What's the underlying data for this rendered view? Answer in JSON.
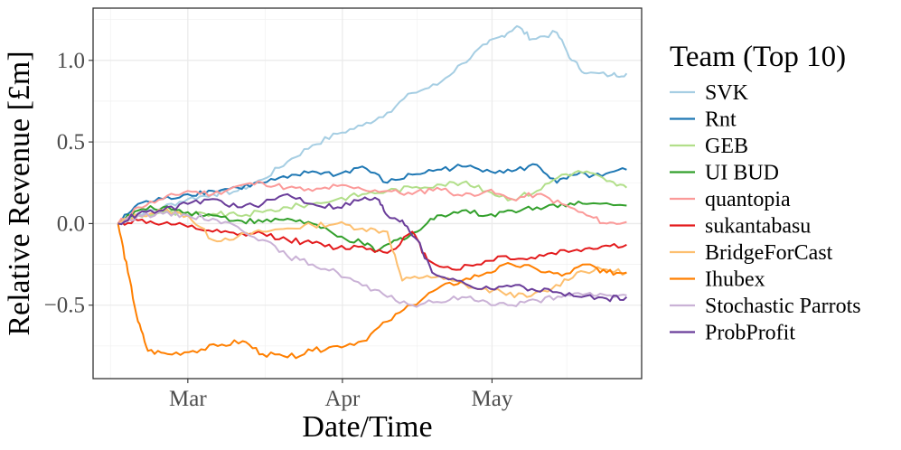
{
  "chart_data": {
    "type": "line",
    "title": "",
    "xlabel": "Date/Time",
    "ylabel": "Relative Revenue [£m]",
    "x_ticks": [
      {
        "label": "Mar",
        "date": "2024-03-01"
      },
      {
        "label": "Apr",
        "date": "2024-04-01"
      },
      {
        "label": "May",
        "date": "2024-05-01"
      }
    ],
    "y_ticks": [
      {
        "label": "1.0",
        "value": 1.0
      },
      {
        "label": "0.5",
        "value": 0.5
      },
      {
        "label": "0.0",
        "value": 0.0
      },
      {
        "label": "−0.5",
        "value": -0.5
      }
    ],
    "xlim": [
      "2024-02-11",
      "2024-05-31"
    ],
    "ylim": [
      -0.95,
      1.32
    ],
    "grid": true,
    "legend": {
      "title": "Team (Top 10)",
      "position": "right"
    },
    "series": [
      {
        "name": "SVK",
        "color": "#a6cee3",
        "points": [
          [
            "2024-02-16",
            0.0
          ],
          [
            "2024-02-20",
            0.06
          ],
          [
            "2024-02-25",
            0.1
          ],
          [
            "2024-03-01",
            0.15
          ],
          [
            "2024-03-06",
            0.18
          ],
          [
            "2024-03-11",
            0.2
          ],
          [
            "2024-03-16",
            0.27
          ],
          [
            "2024-03-21",
            0.38
          ],
          [
            "2024-03-26",
            0.48
          ],
          [
            "2024-03-31",
            0.55
          ],
          [
            "2024-04-05",
            0.6
          ],
          [
            "2024-04-10",
            0.68
          ],
          [
            "2024-04-15",
            0.8
          ],
          [
            "2024-04-20",
            0.85
          ],
          [
            "2024-04-25",
            0.98
          ],
          [
            "2024-04-30",
            1.1
          ],
          [
            "2024-05-03",
            1.15
          ],
          [
            "2024-05-06",
            1.21
          ],
          [
            "2024-05-09",
            1.13
          ],
          [
            "2024-05-14",
            1.17
          ],
          [
            "2024-05-17",
            1.0
          ],
          [
            "2024-05-20",
            0.92
          ],
          [
            "2024-05-25",
            0.91
          ],
          [
            "2024-05-28",
            0.92
          ]
        ]
      },
      {
        "name": "Rnt",
        "color": "#1f78b4",
        "points": [
          [
            "2024-02-16",
            0.0
          ],
          [
            "2024-02-20",
            0.12
          ],
          [
            "2024-02-25",
            0.15
          ],
          [
            "2024-03-01",
            0.18
          ],
          [
            "2024-03-06",
            0.2
          ],
          [
            "2024-03-11",
            0.22
          ],
          [
            "2024-03-16",
            0.25
          ],
          [
            "2024-03-21",
            0.28
          ],
          [
            "2024-03-26",
            0.32
          ],
          [
            "2024-03-31",
            0.3
          ],
          [
            "2024-04-05",
            0.35
          ],
          [
            "2024-04-10",
            0.25
          ],
          [
            "2024-04-15",
            0.3
          ],
          [
            "2024-04-20",
            0.33
          ],
          [
            "2024-04-25",
            0.35
          ],
          [
            "2024-04-30",
            0.33
          ],
          [
            "2024-05-05",
            0.32
          ],
          [
            "2024-05-10",
            0.36
          ],
          [
            "2024-05-14",
            0.25
          ],
          [
            "2024-05-18",
            0.3
          ],
          [
            "2024-05-23",
            0.29
          ],
          [
            "2024-05-28",
            0.33
          ]
        ]
      },
      {
        "name": "GEB",
        "color": "#b2df8a",
        "points": [
          [
            "2024-02-16",
            0.0
          ],
          [
            "2024-02-20",
            0.05
          ],
          [
            "2024-02-25",
            0.07
          ],
          [
            "2024-03-01",
            0.05
          ],
          [
            "2024-03-06",
            0.06
          ],
          [
            "2024-03-11",
            0.05
          ],
          [
            "2024-03-16",
            0.07
          ],
          [
            "2024-03-21",
            0.1
          ],
          [
            "2024-03-26",
            0.12
          ],
          [
            "2024-03-31",
            0.15
          ],
          [
            "2024-04-05",
            0.18
          ],
          [
            "2024-04-10",
            0.2
          ],
          [
            "2024-04-15",
            0.22
          ],
          [
            "2024-04-20",
            0.24
          ],
          [
            "2024-04-25",
            0.25
          ],
          [
            "2024-04-30",
            0.2
          ],
          [
            "2024-05-05",
            0.15
          ],
          [
            "2024-05-10",
            0.2
          ],
          [
            "2024-05-15",
            0.3
          ],
          [
            "2024-05-20",
            0.32
          ],
          [
            "2024-05-24",
            0.26
          ],
          [
            "2024-05-28",
            0.22
          ]
        ]
      },
      {
        "name": "UI BUD",
        "color": "#33a02c",
        "points": [
          [
            "2024-02-16",
            0.0
          ],
          [
            "2024-02-20",
            0.08
          ],
          [
            "2024-02-25",
            0.1
          ],
          [
            "2024-03-01",
            0.07
          ],
          [
            "2024-03-06",
            0.05
          ],
          [
            "2024-03-11",
            0.02
          ],
          [
            "2024-03-16",
            0.01
          ],
          [
            "2024-03-21",
            0.03
          ],
          [
            "2024-03-26",
            0.0
          ],
          [
            "2024-03-31",
            -0.08
          ],
          [
            "2024-04-05",
            -0.12
          ],
          [
            "2024-04-08",
            -0.17
          ],
          [
            "2024-04-12",
            -0.1
          ],
          [
            "2024-04-16",
            -0.05
          ],
          [
            "2024-04-20",
            0.05
          ],
          [
            "2024-04-25",
            0.08
          ],
          [
            "2024-04-30",
            0.05
          ],
          [
            "2024-05-05",
            0.08
          ],
          [
            "2024-05-10",
            0.1
          ],
          [
            "2024-05-15",
            0.12
          ],
          [
            "2024-05-20",
            0.12
          ],
          [
            "2024-05-28",
            0.11
          ]
        ]
      },
      {
        "name": "quantopia",
        "color": "#fb9a99",
        "points": [
          [
            "2024-02-16",
            0.0
          ],
          [
            "2024-02-20",
            0.1
          ],
          [
            "2024-02-25",
            0.15
          ],
          [
            "2024-03-01",
            0.2
          ],
          [
            "2024-03-06",
            0.18
          ],
          [
            "2024-03-11",
            0.23
          ],
          [
            "2024-03-16",
            0.25
          ],
          [
            "2024-03-21",
            0.22
          ],
          [
            "2024-03-26",
            0.2
          ],
          [
            "2024-03-31",
            0.23
          ],
          [
            "2024-04-05",
            0.21
          ],
          [
            "2024-04-10",
            0.2
          ],
          [
            "2024-04-15",
            0.18
          ],
          [
            "2024-04-20",
            0.22
          ],
          [
            "2024-04-25",
            0.17
          ],
          [
            "2024-04-30",
            0.2
          ],
          [
            "2024-05-05",
            0.15
          ],
          [
            "2024-05-10",
            0.18
          ],
          [
            "2024-05-15",
            0.12
          ],
          [
            "2024-05-20",
            0.05
          ],
          [
            "2024-05-24",
            0.0
          ],
          [
            "2024-05-28",
            0.01
          ]
        ]
      },
      {
        "name": "sukantabasu",
        "color": "#e31a1c",
        "points": [
          [
            "2024-02-16",
            0.0
          ],
          [
            "2024-02-20",
            0.02
          ],
          [
            "2024-02-25",
            0.0
          ],
          [
            "2024-03-01",
            -0.02
          ],
          [
            "2024-03-06",
            -0.05
          ],
          [
            "2024-03-11",
            -0.07
          ],
          [
            "2024-03-16",
            -0.06
          ],
          [
            "2024-03-21",
            -0.1
          ],
          [
            "2024-03-26",
            -0.12
          ],
          [
            "2024-03-31",
            -0.15
          ],
          [
            "2024-04-05",
            -0.14
          ],
          [
            "2024-04-10",
            -0.18
          ],
          [
            "2024-04-15",
            -0.05
          ],
          [
            "2024-04-18",
            -0.22
          ],
          [
            "2024-04-23",
            -0.28
          ],
          [
            "2024-04-28",
            -0.25
          ],
          [
            "2024-05-03",
            -0.2
          ],
          [
            "2024-05-08",
            -0.22
          ],
          [
            "2024-05-13",
            -0.18
          ],
          [
            "2024-05-18",
            -0.16
          ],
          [
            "2024-05-23",
            -0.14
          ],
          [
            "2024-05-28",
            -0.13
          ]
        ]
      },
      {
        "name": "BridgeForCast",
        "color": "#fdbf6f",
        "points": [
          [
            "2024-02-16",
            0.0
          ],
          [
            "2024-02-20",
            0.05
          ],
          [
            "2024-02-25",
            0.08
          ],
          [
            "2024-03-01",
            0.05
          ],
          [
            "2024-03-06",
            -0.1
          ],
          [
            "2024-03-11",
            -0.08
          ],
          [
            "2024-03-16",
            -0.05
          ],
          [
            "2024-03-21",
            -0.03
          ],
          [
            "2024-03-26",
            -0.01
          ],
          [
            "2024-03-31",
            0.0
          ],
          [
            "2024-04-05",
            -0.03
          ],
          [
            "2024-04-10",
            -0.05
          ],
          [
            "2024-04-13",
            -0.35
          ],
          [
            "2024-04-18",
            -0.32
          ],
          [
            "2024-04-23",
            -0.35
          ],
          [
            "2024-04-28",
            -0.4
          ],
          [
            "2024-05-03",
            -0.42
          ],
          [
            "2024-05-08",
            -0.45
          ],
          [
            "2024-05-13",
            -0.4
          ],
          [
            "2024-05-18",
            -0.3
          ],
          [
            "2024-05-23",
            -0.28
          ],
          [
            "2024-05-28",
            -0.3
          ]
        ]
      },
      {
        "name": "Ihubex",
        "color": "#ff7f00",
        "points": [
          [
            "2024-02-16",
            0.0
          ],
          [
            "2024-02-18",
            -0.3
          ],
          [
            "2024-02-20",
            -0.6
          ],
          [
            "2024-02-22",
            -0.78
          ],
          [
            "2024-02-26",
            -0.8
          ],
          [
            "2024-03-02",
            -0.78
          ],
          [
            "2024-03-07",
            -0.75
          ],
          [
            "2024-03-12",
            -0.72
          ],
          [
            "2024-03-16",
            -0.8
          ],
          [
            "2024-03-21",
            -0.82
          ],
          [
            "2024-03-26",
            -0.78
          ],
          [
            "2024-03-31",
            -0.75
          ],
          [
            "2024-04-05",
            -0.72
          ],
          [
            "2024-04-10",
            -0.6
          ],
          [
            "2024-04-15",
            -0.5
          ],
          [
            "2024-04-20",
            -0.4
          ],
          [
            "2024-04-25",
            -0.35
          ],
          [
            "2024-04-30",
            -0.3
          ],
          [
            "2024-05-05",
            -0.25
          ],
          [
            "2024-05-10",
            -0.28
          ],
          [
            "2024-05-15",
            -0.32
          ],
          [
            "2024-05-20",
            -0.25
          ],
          [
            "2024-05-24",
            -0.3
          ],
          [
            "2024-05-28",
            -0.3
          ]
        ]
      },
      {
        "name": "Stochastic Parrots",
        "color": "#cab2d6",
        "points": [
          [
            "2024-02-16",
            0.0
          ],
          [
            "2024-02-20",
            0.05
          ],
          [
            "2024-02-25",
            0.06
          ],
          [
            "2024-03-01",
            0.05
          ],
          [
            "2024-03-06",
            0.03
          ],
          [
            "2024-03-11",
            -0.02
          ],
          [
            "2024-03-16",
            -0.1
          ],
          [
            "2024-03-21",
            -0.2
          ],
          [
            "2024-03-26",
            -0.25
          ],
          [
            "2024-03-31",
            -0.3
          ],
          [
            "2024-04-05",
            -0.38
          ],
          [
            "2024-04-10",
            -0.45
          ],
          [
            "2024-04-15",
            -0.5
          ],
          [
            "2024-04-20",
            -0.48
          ],
          [
            "2024-04-25",
            -0.45
          ],
          [
            "2024-04-30",
            -0.48
          ],
          [
            "2024-05-05",
            -0.5
          ],
          [
            "2024-05-10",
            -0.47
          ],
          [
            "2024-05-15",
            -0.45
          ],
          [
            "2024-05-20",
            -0.43
          ],
          [
            "2024-05-24",
            -0.44
          ],
          [
            "2024-05-28",
            -0.44
          ]
        ]
      },
      {
        "name": "ProbProfit",
        "color": "#6a3d9a",
        "points": [
          [
            "2024-02-16",
            0.0
          ],
          [
            "2024-02-20",
            0.06
          ],
          [
            "2024-02-25",
            0.08
          ],
          [
            "2024-03-01",
            0.12
          ],
          [
            "2024-03-06",
            0.15
          ],
          [
            "2024-03-11",
            0.1
          ],
          [
            "2024-03-16",
            0.12
          ],
          [
            "2024-03-21",
            0.18
          ],
          [
            "2024-03-26",
            0.12
          ],
          [
            "2024-03-31",
            0.1
          ],
          [
            "2024-04-05",
            0.15
          ],
          [
            "2024-04-08",
            0.15
          ],
          [
            "2024-04-10",
            0.05
          ],
          [
            "2024-04-13",
            0.02
          ],
          [
            "2024-04-16",
            -0.1
          ],
          [
            "2024-04-19",
            -0.3
          ],
          [
            "2024-04-24",
            -0.35
          ],
          [
            "2024-04-29",
            -0.4
          ],
          [
            "2024-05-04",
            -0.38
          ],
          [
            "2024-05-09",
            -0.4
          ],
          [
            "2024-05-14",
            -0.42
          ],
          [
            "2024-05-19",
            -0.45
          ],
          [
            "2024-05-24",
            -0.46
          ],
          [
            "2024-05-28",
            -0.45
          ]
        ]
      }
    ]
  }
}
